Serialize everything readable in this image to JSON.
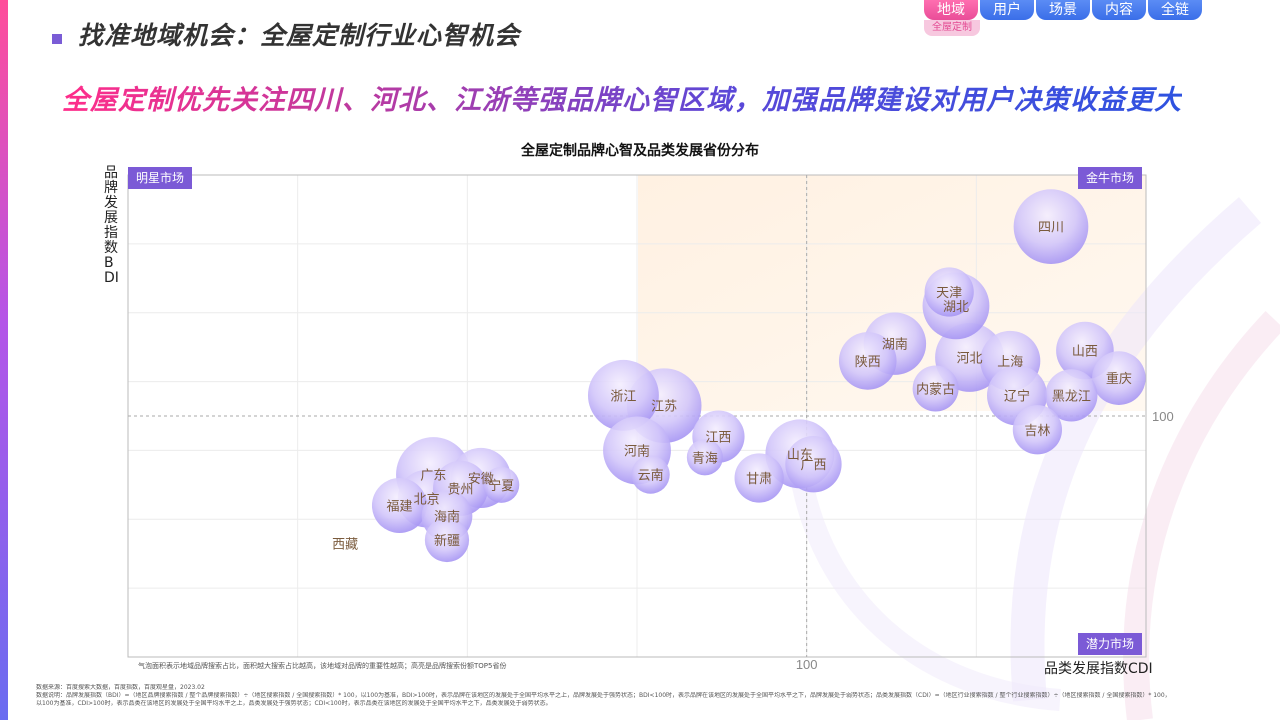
{
  "page": {
    "title": "找准地域机会：全屋定制行业心智机会",
    "headline": "全屋定制优先关注四川、河北、江浙等强品牌心智区域，加强品牌建设对用户决策收益更大"
  },
  "nav": {
    "tabs": [
      {
        "label": "地域",
        "active": true
      },
      {
        "label": "用户",
        "active": false
      },
      {
        "label": "场景",
        "active": false
      },
      {
        "label": "内容",
        "active": false
      },
      {
        "label": "全链",
        "active": false
      }
    ],
    "active_sub": "全屋定制"
  },
  "quadrants": {
    "top_left": "明星市场",
    "top_right": "金牛市场",
    "bottom_right": "潜力市场"
  },
  "note": "气泡面积表示地域品牌搜索占比，面积越大搜索占比越高，该地域对品牌的重要性越高；高亮是品牌搜索份额TOP5省份",
  "footer": {
    "source": "数据来源：百度搜索大数据，百度指数，百度观星盘，2023.02",
    "explain1": "数据说明：品牌发展指数（BDI）=（地区品牌搜索指数 / 整个品牌搜索指数）÷（地区搜索指数 / 全国搜索指数）* 100，以100为基准，BDI>100时，表示品牌在该地区的发展处于全国平均水平之上，品牌发展处于强势状态；BDI<100时，表示品牌在该地区的发展处于全国平均水平之下，品牌发展处于弱势状态；品类发展指数（CDI）=（地区行业搜索指数 / 整个行业搜索指数）÷（地区搜索指数 / 全国搜索指数）* 100，",
    "explain2": "以100为基准，CDI>100时，表示品类在该地区的发展处于全国平均水平之上，品类发展处于强势状态；CDI<100时，表示品类在该地区的发展处于全国平均水平之下，品类发展处于弱势状态。"
  },
  "colors": {
    "accent": "#7b5ad6",
    "highlight_quadrant": "#fff3e6",
    "bubble_label": "#7a5a3c"
  },
  "chart_data": {
    "type": "scatter",
    "title": "全屋定制品牌心智及品类发展省份分布",
    "xlabel": "品类发展指数CDI",
    "ylabel": "品牌发展指数BDI",
    "xlim": [
      0,
      150
    ],
    "ylim": [
      30,
      170
    ],
    "x_reference": 100,
    "y_reference": 100,
    "x_reference_label": "100",
    "y_reference_label": "100",
    "grid": true,
    "points": [
      {
        "name": "四川",
        "x": 136,
        "y": 155,
        "size": 3.4,
        "bubble": true
      },
      {
        "name": "天津",
        "x": 121,
        "y": 136,
        "size": 1.2,
        "bubble": true
      },
      {
        "name": "湖北",
        "x": 122,
        "y": 132,
        "size": 2.6,
        "bubble": true
      },
      {
        "name": "湖南",
        "x": 113,
        "y": 121,
        "size": 2.2,
        "bubble": true
      },
      {
        "name": "陕西",
        "x": 109,
        "y": 116,
        "size": 1.8,
        "bubble": true
      },
      {
        "name": "河北",
        "x": 124,
        "y": 117,
        "size": 2.8,
        "bubble": true
      },
      {
        "name": "上海",
        "x": 130,
        "y": 116,
        "size": 2.0,
        "bubble": true
      },
      {
        "name": "山西",
        "x": 141,
        "y": 119,
        "size": 1.8,
        "bubble": true
      },
      {
        "name": "内蒙古",
        "x": 119,
        "y": 108,
        "size": 1.0,
        "bubble": true
      },
      {
        "name": "重庆",
        "x": 146,
        "y": 111,
        "size": 1.5,
        "bubble": true
      },
      {
        "name": "辽宁",
        "x": 131,
        "y": 106,
        "size": 2.0,
        "bubble": true
      },
      {
        "name": "黑龙江",
        "x": 139,
        "y": 106,
        "size": 1.4,
        "bubble": true
      },
      {
        "name": "吉林",
        "x": 134,
        "y": 96,
        "size": 1.2,
        "bubble": true
      },
      {
        "name": "浙江",
        "x": 73,
        "y": 106,
        "size": 3.0,
        "bubble": true
      },
      {
        "name": "江苏",
        "x": 79,
        "y": 103,
        "size": 3.4,
        "bubble": true
      },
      {
        "name": "江西",
        "x": 87,
        "y": 94,
        "size": 1.4,
        "bubble": true
      },
      {
        "name": "河南",
        "x": 75,
        "y": 90,
        "size": 2.7,
        "bubble": true
      },
      {
        "name": "青海",
        "x": 85,
        "y": 88,
        "size": 0.5,
        "bubble": true
      },
      {
        "name": "山东",
        "x": 99,
        "y": 89,
        "size": 2.8,
        "bubble": true
      },
      {
        "name": "广西",
        "x": 101,
        "y": 86,
        "size": 1.7,
        "bubble": true
      },
      {
        "name": "云南",
        "x": 77,
        "y": 83,
        "size": 0.6,
        "bubble": true
      },
      {
        "name": "甘肃",
        "x": 93,
        "y": 82,
        "size": 1.2,
        "bubble": true
      },
      {
        "name": "广东",
        "x": 45,
        "y": 83,
        "size": 3.4,
        "bubble": true
      },
      {
        "name": "安徽",
        "x": 52,
        "y": 82,
        "size": 2.0,
        "bubble": true
      },
      {
        "name": "贵州",
        "x": 49,
        "y": 79,
        "size": 1.6,
        "bubble": true
      },
      {
        "name": "宁夏",
        "x": 55,
        "y": 80,
        "size": 0.5,
        "bubble": true
      },
      {
        "name": "北京",
        "x": 44,
        "y": 76,
        "size": 1.8,
        "bubble": true
      },
      {
        "name": "福建",
        "x": 40,
        "y": 74,
        "size": 1.6,
        "bubble": true
      },
      {
        "name": "海南",
        "x": 47,
        "y": 71,
        "size": 1.3,
        "bubble": true
      },
      {
        "name": "新疆",
        "x": 47,
        "y": 64,
        "size": 0.9,
        "bubble": true
      },
      {
        "name": "西藏",
        "x": 32,
        "y": 63,
        "size": 0,
        "bubble": false
      }
    ]
  }
}
